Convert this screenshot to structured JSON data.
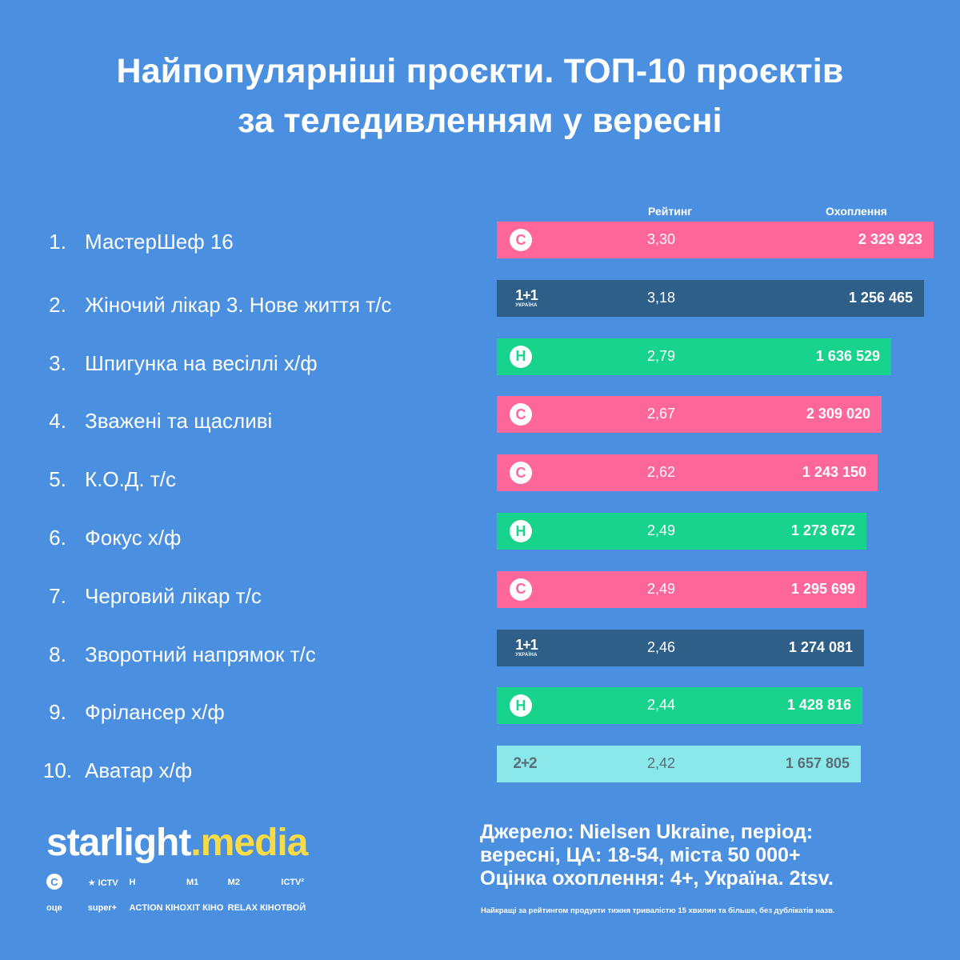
{
  "title": {
    "line1": "Найпопулярніші проєкти. ТОП-10 проєктів",
    "line2": "за теледивленням у вересні"
  },
  "chart_data": {
    "type": "table",
    "columns": {
      "rating": "Рейтинг",
      "reach": "Охоплення"
    },
    "rows": [
      {
        "rank": "1.",
        "name": "МастерШеф 16",
        "channel": "СТБ",
        "logo": "C",
        "color": "#ff6699",
        "rating": "3,30",
        "reach": "2 329 923",
        "rating_value": 3.3
      },
      {
        "rank": "2.",
        "name": "Жіночий лікар 3. Нове життя т/с",
        "channel": "1+1 Україна",
        "logo": "1+1",
        "logo_sub": "УКРАЇНА",
        "color": "#2e5f88",
        "rating": "3,18",
        "reach": "1 256 465",
        "rating_value": 3.18
      },
      {
        "rank": "3.",
        "name": "Шпигунка на весіллі х/ф",
        "channel": "Новий канал",
        "logo": "H",
        "color": "#18d38c",
        "rating": "2,79",
        "reach": "1 636 529",
        "rating_value": 2.79
      },
      {
        "rank": "4.",
        "name": "Зважені та щасливі",
        "channel": "СТБ",
        "logo": "C",
        "color": "#ff6699",
        "rating": "2,67",
        "reach": "2 309 020",
        "rating_value": 2.67
      },
      {
        "rank": "5.",
        "name": "К.О.Д. т/с",
        "channel": "СТБ",
        "logo": "C",
        "color": "#ff6699",
        "rating": "2,62",
        "reach": "1 243 150",
        "rating_value": 2.62
      },
      {
        "rank": "6.",
        "name": "Фокус х/ф",
        "channel": "Новий канал",
        "logo": "H",
        "color": "#18d38c",
        "rating": "2,49",
        "reach": "1 273 672",
        "rating_value": 2.49
      },
      {
        "rank": "7.",
        "name": "Черговий лікар т/с",
        "channel": "СТБ",
        "logo": "C",
        "color": "#ff6699",
        "rating": "2,49",
        "reach": "1 295 699",
        "rating_value": 2.49
      },
      {
        "rank": "8.",
        "name": "Зворотний напрямок т/с",
        "channel": "1+1 Україна",
        "logo": "1+1",
        "logo_sub": "УКРАЇНА",
        "color": "#2e5f88",
        "rating": "2,46",
        "reach": "1 274 081",
        "rating_value": 2.46
      },
      {
        "rank": "9.",
        "name": "Фрілансер х/ф",
        "channel": "Новий канал",
        "logo": "H",
        "color": "#18d38c",
        "rating": "2,44",
        "reach": "1 428 816",
        "rating_value": 2.44
      },
      {
        "rank": "10.",
        "name": "Аватар х/ф",
        "channel": "2+2",
        "logo": "2+2",
        "color": "#8ae7ea",
        "rating": "2,42",
        "reach": "1 657 805",
        "rating_value": 2.42
      }
    ]
  },
  "brand": {
    "part1": "starlight",
    "dot": ".",
    "part2": "media"
  },
  "channels": [
    {
      "label": "C",
      "icon": "stb-icon"
    },
    {
      "label": "★ ICTV",
      "icon": "ictv-icon"
    },
    {
      "label": "Н",
      "icon": "novyi-icon"
    },
    {
      "label": "М1",
      "icon": "m1-icon"
    },
    {
      "label": "М2",
      "icon": "m2-icon"
    },
    {
      "label": "ICTV²",
      "icon": "ictv2-icon"
    },
    {
      "label": "оце",
      "icon": "oce-icon"
    },
    {
      "label": "super+",
      "icon": "super-icon"
    },
    {
      "label": "ACTION КІНО",
      "icon": "action-kino-icon"
    },
    {
      "label": "ХІТ КІНО",
      "icon": "hit-kino-icon"
    },
    {
      "label": "RELAX КІНО",
      "icon": "relax-kino-icon"
    },
    {
      "label": "ТВОЙ",
      "icon": "tvoi-icon"
    }
  ],
  "source": {
    "line1": "Джерело: Nielsen Ukraine, період:",
    "line2": "вересні, ЦА: 18-54, міста 50 000+",
    "line3": "Оцінка охоплення: 4+, Україна. 2tsv.",
    "footnote": "Найкращі за рейтингом продукти тижня тривалістю 15 хвилин та більше, без дублікатів назв."
  }
}
